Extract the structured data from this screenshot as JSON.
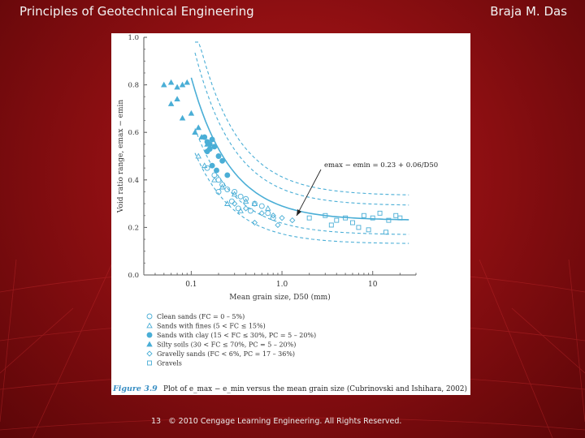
{
  "header": {
    "title": "Principles of Geotechnical Engineering",
    "author": "Braja M. Das"
  },
  "footer": {
    "page_number": "13",
    "copyright": "© 2010 Cengage Learning Engineering. All Rights Reserved."
  },
  "figure": {
    "caption_label": "Figure 3.9",
    "caption_text": "Plot of e_max − e_min versus the mean grain size (Cubrinovski and Ishihara, 2002)",
    "colors": {
      "data": "#4aaed6",
      "caption_label": "#3a8fc4"
    }
  },
  "chart_data": {
    "type": "scatter",
    "xlabel": "Mean grain size, D50 (mm)",
    "ylabel": "Void ratio range, emax − emin",
    "x_scale": "log",
    "xlim": [
      0.03,
      30
    ],
    "ylim": [
      0.0,
      1.0
    ],
    "x_ticks": [
      "0.1",
      "1.0",
      "10"
    ],
    "y_ticks": [
      "0.0",
      "0.2",
      "0.4",
      "0.6",
      "0.8",
      "1.0"
    ],
    "grid": false,
    "equation": "emax − emin = 0.23 + 0.06/D50",
    "curve": {
      "a": 0.23,
      "b": 0.06
    },
    "legend": [
      {
        "marker": "circle-open",
        "label": "Clean sands (FC = 0 – 5%)"
      },
      {
        "marker": "triangle-open",
        "label": "Sands with fines (5 < FC ≤ 15%)"
      },
      {
        "marker": "circle-filled",
        "label": "Sands with clay (15 < FC ≤ 30%, PC = 5 – 20%)"
      },
      {
        "marker": "triangle-filled",
        "label": "Silty soils (30 < FC ≤ 70%, PC = 5 – 20%)"
      },
      {
        "marker": "diamond-open",
        "label": "Gravelly sands (FC < 6%, PC = 17 – 36%)"
      },
      {
        "marker": "square-open",
        "label": "Gravels"
      }
    ],
    "series": [
      {
        "name": "Silty soils",
        "marker": "triangle-filled",
        "x": [
          0.05,
          0.06,
          0.07,
          0.08,
          0.09,
          0.06,
          0.07,
          0.1,
          0.12,
          0.08,
          0.11,
          0.13,
          0.15
        ],
        "y": [
          0.8,
          0.81,
          0.79,
          0.8,
          0.81,
          0.72,
          0.74,
          0.68,
          0.62,
          0.66,
          0.6,
          0.58,
          0.55
        ]
      },
      {
        "name": "Sands with clay",
        "marker": "circle-filled",
        "x": [
          0.14,
          0.15,
          0.16,
          0.17,
          0.18,
          0.15,
          0.16,
          0.2,
          0.22,
          0.17,
          0.19,
          0.25
        ],
        "y": [
          0.58,
          0.56,
          0.55,
          0.57,
          0.54,
          0.52,
          0.53,
          0.5,
          0.48,
          0.46,
          0.44,
          0.42
        ]
      },
      {
        "name": "Clean sands",
        "marker": "circle-open",
        "x": [
          0.15,
          0.18,
          0.2,
          0.22,
          0.25,
          0.3,
          0.35,
          0.4,
          0.5,
          0.6,
          0.2,
          0.28,
          0.33,
          0.45,
          0.7,
          0.8
        ],
        "y": [
          0.45,
          0.42,
          0.4,
          0.38,
          0.36,
          0.35,
          0.33,
          0.32,
          0.3,
          0.29,
          0.35,
          0.31,
          0.28,
          0.27,
          0.26,
          0.24
        ]
      },
      {
        "name": "Sands with fines",
        "marker": "triangle-open",
        "x": [
          0.12,
          0.14,
          0.18,
          0.22,
          0.3,
          0.4,
          0.5,
          0.7,
          0.25,
          0.35
        ],
        "y": [
          0.5,
          0.46,
          0.4,
          0.37,
          0.34,
          0.31,
          0.3,
          0.28,
          0.3,
          0.27
        ]
      },
      {
        "name": "Gravelly sands",
        "marker": "diamond-open",
        "x": [
          0.3,
          0.4,
          0.6,
          0.8,
          1.0,
          1.3,
          0.5,
          0.9
        ],
        "y": [
          0.3,
          0.28,
          0.26,
          0.25,
          0.24,
          0.23,
          0.22,
          0.21
        ]
      },
      {
        "name": "Gravels",
        "marker": "square-open",
        "x": [
          2,
          3,
          4,
          5,
          6,
          8,
          10,
          12,
          15,
          18,
          20,
          3.5,
          7,
          9,
          14
        ],
        "y": [
          0.24,
          0.25,
          0.23,
          0.24,
          0.22,
          0.25,
          0.24,
          0.26,
          0.23,
          0.25,
          0.24,
          0.21,
          0.2,
          0.19,
          0.18
        ]
      }
    ]
  }
}
